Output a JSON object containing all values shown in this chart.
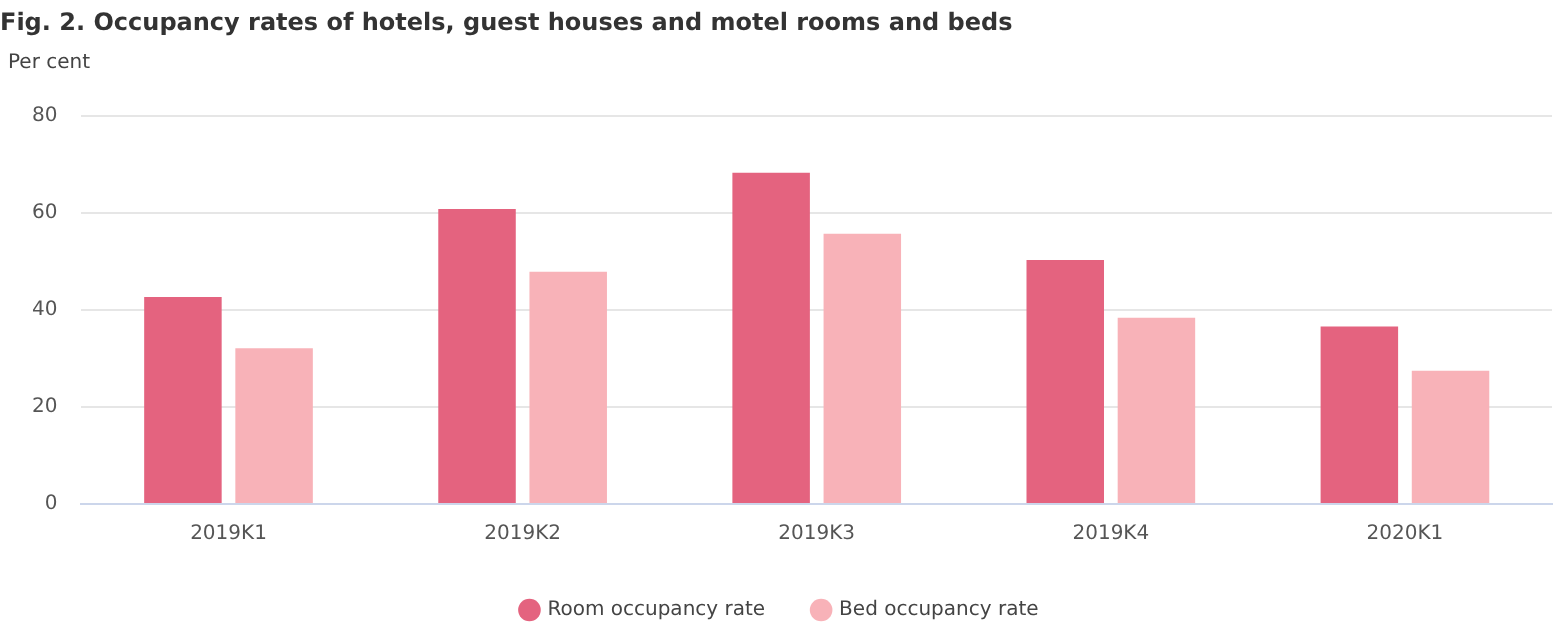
{
  "chart_data": {
    "type": "bar",
    "title": "Fig. 2. Occupancy rates of hotels, guest houses and motel rooms and beds",
    "ylabel": "Per cent",
    "categories": [
      "2019K1",
      "2019K2",
      "2019K3",
      "2019K4",
      "2020K1"
    ],
    "series": [
      {
        "name": "Room occupancy rate",
        "color": "#e4637f",
        "values": [
          42.7,
          60.8,
          68.3,
          50.3,
          36.6
        ]
      },
      {
        "name": "Bed occupancy rate",
        "color": "#f8b2b8",
        "values": [
          32.1,
          47.9,
          55.7,
          38.4,
          27.5
        ]
      }
    ],
    "ylim": [
      0,
      80
    ],
    "yticks": [
      0,
      20,
      40,
      60,
      80
    ],
    "grid": "y",
    "legend": "bottom"
  }
}
